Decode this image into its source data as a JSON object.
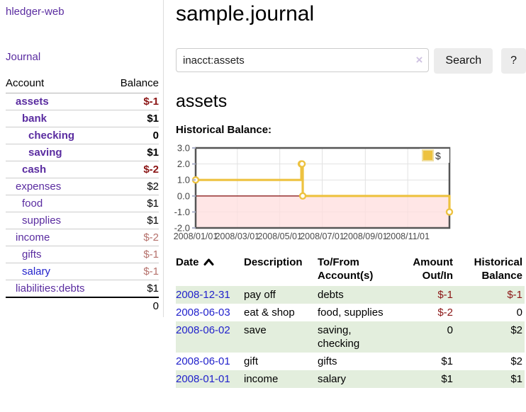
{
  "app": {
    "brand": "hledger-web",
    "nav_journal": "Journal"
  },
  "colors": {
    "accent_purple": "#5a2ca0",
    "link_blue": "#2222cc",
    "negative_strong": "#8b1515",
    "negative_muted": "#b5706b",
    "row_green": "#e3eedd",
    "button_gray": "#ececec"
  },
  "sidebar": {
    "header": {
      "account": "Account",
      "balance": "Balance"
    },
    "accounts": [
      {
        "name": "assets",
        "balance": "$-1",
        "level": 1,
        "bold": true,
        "balance_class": "neg"
      },
      {
        "name": "bank",
        "balance": "$1",
        "level": 2,
        "bold": true,
        "balance_class": ""
      },
      {
        "name": "checking",
        "balance": "0",
        "level": 3,
        "bold": true,
        "balance_class": ""
      },
      {
        "name": "saving",
        "balance": "$1",
        "level": 3,
        "bold": true,
        "balance_class": ""
      },
      {
        "name": "cash",
        "balance": "$-2",
        "level": 2,
        "bold": true,
        "balance_class": "neg"
      },
      {
        "name": "expenses",
        "balance": "$2",
        "level": 1,
        "bold": false,
        "balance_class": ""
      },
      {
        "name": "food",
        "balance": "$1",
        "level": 2,
        "bold": false,
        "balance_class": ""
      },
      {
        "name": "supplies",
        "balance": "$1",
        "level": 2,
        "bold": false,
        "balance_class": ""
      },
      {
        "name": "income",
        "balance": "$-2",
        "level": 1,
        "bold": false,
        "balance_class": "neg-muted"
      },
      {
        "name": "gifts",
        "balance": "$-1",
        "level": 2,
        "bold": false,
        "balance_class": "neg-muted"
      },
      {
        "name": "salary",
        "balance": "$-1",
        "level": 2,
        "bold": false,
        "balance_class": "neg-muted",
        "link_color": "blue"
      },
      {
        "name": "liabilities:debts",
        "balance": "$1",
        "level": 1,
        "bold": false,
        "balance_class": ""
      }
    ],
    "total": "0"
  },
  "main": {
    "title": "sample.journal",
    "search": {
      "value": "inacct:assets",
      "clear_glyph": "×",
      "search_button": "Search",
      "help_button": "?"
    },
    "account_heading": "assets",
    "chart_label": "Historical Balance:"
  },
  "chart_data": {
    "type": "line",
    "title": "Historical Balance",
    "step": true,
    "series": [
      {
        "name": "$",
        "color": "#EDC240",
        "points": [
          {
            "date": "2008-01-01",
            "value": 1
          },
          {
            "date": "2008-06-01",
            "value": 2
          },
          {
            "date": "2008-06-02",
            "value": 2
          },
          {
            "date": "2008-06-03",
            "value": 0
          },
          {
            "date": "2008-12-31",
            "value": -1
          }
        ]
      }
    ],
    "ylim": [
      -2,
      3
    ],
    "yticks": [
      3.0,
      2.0,
      1.0,
      0.0,
      -1.0,
      -2.0
    ],
    "ytick_labels": [
      "3.0",
      "2.0",
      "1.0",
      "0.0",
      "-1.0",
      "-2.0"
    ],
    "xticks": [
      "2008/01/01",
      "2008/03/01",
      "2008/05/01",
      "2008/07/01",
      "2008/09/01",
      "2008/11/01"
    ],
    "xrange": [
      "2008-01-01",
      "2008-12-31"
    ],
    "grid": true,
    "negative_region_fill": "#ffdddd",
    "zero_line_color": "#8b1d1d",
    "legend": {
      "label": "$",
      "position": "top-right"
    }
  },
  "register": {
    "headers": {
      "date": "Date",
      "description": "Description",
      "account_l1": "To/From",
      "account_l2": "Account(s)",
      "amount_l1": "Amount",
      "amount_l2": "Out/In",
      "balance_l1": "Historical",
      "balance_l2": "Balance"
    },
    "rows": [
      {
        "date": "2008-12-31",
        "description": "pay off",
        "accounts": "debts",
        "amount": "$-1",
        "balance": "$-1",
        "amount_neg": true,
        "balance_neg": true,
        "shaded": true
      },
      {
        "date": "2008-06-03",
        "description": "eat & shop",
        "accounts": "food, supplies",
        "amount": "$-2",
        "balance": "0",
        "amount_neg": true,
        "balance_neg": false,
        "shaded": false
      },
      {
        "date": "2008-06-02",
        "description": "save",
        "accounts": "saving, checking",
        "amount": "0",
        "balance": "$2",
        "amount_neg": false,
        "balance_neg": false,
        "shaded": true
      },
      {
        "date": "2008-06-01",
        "description": "gift",
        "accounts": "gifts",
        "amount": "$1",
        "balance": "$2",
        "amount_neg": false,
        "balance_neg": false,
        "shaded": false
      },
      {
        "date": "2008-01-01",
        "description": "income",
        "accounts": "salary",
        "amount": "$1",
        "balance": "$1",
        "amount_neg": false,
        "balance_neg": false,
        "shaded": true
      }
    ]
  }
}
